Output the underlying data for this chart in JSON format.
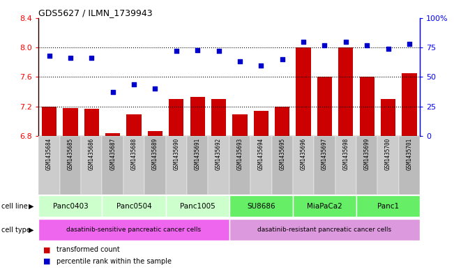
{
  "title": "GDS5627 / ILMN_1739943",
  "samples": [
    "GSM1435684",
    "GSM1435685",
    "GSM1435686",
    "GSM1435687",
    "GSM1435688",
    "GSM1435689",
    "GSM1435690",
    "GSM1435691",
    "GSM1435692",
    "GSM1435693",
    "GSM1435694",
    "GSM1435695",
    "GSM1435696",
    "GSM1435697",
    "GSM1435698",
    "GSM1435699",
    "GSM1435700",
    "GSM1435701"
  ],
  "bar_values": [
    7.2,
    7.18,
    7.17,
    6.84,
    7.09,
    6.87,
    7.3,
    7.33,
    7.3,
    7.09,
    7.14,
    7.2,
    8.0,
    7.6,
    8.0,
    7.6,
    7.3,
    7.65
  ],
  "dot_values": [
    68,
    66,
    66,
    37,
    44,
    40,
    72,
    73,
    72,
    63,
    60,
    65,
    80,
    77,
    80,
    77,
    74,
    78
  ],
  "bar_color": "#cc0000",
  "dot_color": "#0000cc",
  "ylim_left": [
    6.8,
    8.4
  ],
  "ylim_right": [
    0,
    100
  ],
  "yticks_left": [
    6.8,
    7.2,
    7.6,
    8.0,
    8.4
  ],
  "yticks_right": [
    0,
    25,
    50,
    75,
    100
  ],
  "ytick_labels_right": [
    "0",
    "25",
    "50",
    "75",
    "100%"
  ],
  "cell_lines": [
    {
      "label": "Panc0403",
      "start": 0,
      "end": 3,
      "color": "#ccffcc"
    },
    {
      "label": "Panc0504",
      "start": 3,
      "end": 6,
      "color": "#ccffcc"
    },
    {
      "label": "Panc1005",
      "start": 6,
      "end": 9,
      "color": "#ccffcc"
    },
    {
      "label": "SU8686",
      "start": 9,
      "end": 12,
      "color": "#66ee66"
    },
    {
      "label": "MiaPaCa2",
      "start": 12,
      "end": 15,
      "color": "#66ee66"
    },
    {
      "label": "Panc1",
      "start": 15,
      "end": 18,
      "color": "#66ee66"
    }
  ],
  "cell_types": [
    {
      "label": "dasatinib-sensitive pancreatic cancer cells",
      "start": 0,
      "end": 9,
      "color": "#ee66ee"
    },
    {
      "label": "dasatinib-resistant pancreatic cancer cells",
      "start": 9,
      "end": 18,
      "color": "#dd99dd"
    }
  ],
  "legend_bar_label": "transformed count",
  "legend_dot_label": "percentile rank within the sample",
  "cell_line_label": "cell line",
  "cell_type_label": "cell type",
  "sample_row_colors": [
    "#cccccc",
    "#bbbbbb"
  ],
  "grid_lines": [
    7.2,
    7.6,
    8.0
  ]
}
